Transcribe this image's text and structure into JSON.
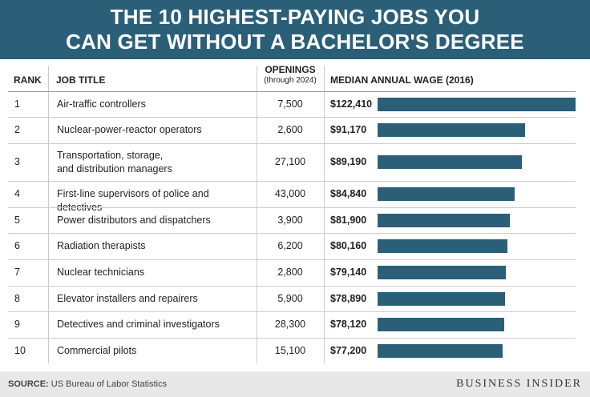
{
  "header": {
    "line1": "THE 10 HIGHEST-PAYING JOBS YOU",
    "line2": "CAN GET WITHOUT A BACHELOR'S DEGREE"
  },
  "columns": {
    "rank": "RANK",
    "title": "JOB TITLE",
    "openings": "OPENINGS",
    "openings_sub": "(through 2024)",
    "wage": "MEDIAN ANNUAL WAGE (2016)"
  },
  "rows": [
    {
      "rank": "1",
      "title": "Air-traffic controllers",
      "openings": "7,500",
      "wage": "$122,410"
    },
    {
      "rank": "2",
      "title": "Nuclear-power-reactor operators",
      "openings": "2,600",
      "wage": "$91,170"
    },
    {
      "rank": "3",
      "title": "Transportation, storage,",
      "title2": "and distribution managers",
      "openings": "27,100",
      "wage": "$89,190"
    },
    {
      "rank": "4",
      "title": "First-line supervisors of police and detectives",
      "openings": "43,000",
      "wage": "$84,840"
    },
    {
      "rank": "5",
      "title": "Power distributors and dispatchers",
      "openings": "3,900",
      "wage": "$81,900"
    },
    {
      "rank": "6",
      "title": "Radiation therapists",
      "openings": "6,200",
      "wage": "$80,160"
    },
    {
      "rank": "7",
      "title": "Nuclear technicians",
      "openings": "2,800",
      "wage": "$79,140"
    },
    {
      "rank": "8",
      "title": "Elevator installers and repairers",
      "openings": "5,900",
      "wage": "$78,890"
    },
    {
      "rank": "9",
      "title": "Detectives and criminal investigators",
      "openings": "28,300",
      "wage": "$78,120"
    },
    {
      "rank": "10",
      "title": "Commercial pilots",
      "openings": "15,100",
      "wage": "$77,200"
    }
  ],
  "chart_data": {
    "type": "bar",
    "orientation": "horizontal",
    "title": "THE 10 HIGHEST-PAYING JOBS YOU CAN GET WITHOUT A BACHELOR'S DEGREE",
    "categories": [
      "Air-traffic controllers",
      "Nuclear-power-reactor operators",
      "Transportation, storage, and distribution managers",
      "First-line supervisors of police and detectives",
      "Power distributors and dispatchers",
      "Radiation therapists",
      "Nuclear technicians",
      "Elevator installers and repairers",
      "Detectives and criminal investigators",
      "Commercial pilots"
    ],
    "values": [
      122410,
      91170,
      89190,
      84840,
      81900,
      80160,
      79140,
      78890,
      78120,
      77200
    ],
    "openings": [
      7500,
      2600,
      27100,
      43000,
      3900,
      6200,
      2800,
      5900,
      28300,
      15100
    ],
    "ylabel": "MEDIAN ANNUAL WAGE (2016)",
    "xlim": [
      0,
      122410
    ],
    "bar_color": "#2b5f78"
  },
  "footer": {
    "source_label": "SOURCE:",
    "source_text": "US Bureau of Labor Statistics",
    "brand": "BUSINESS INSIDER"
  }
}
